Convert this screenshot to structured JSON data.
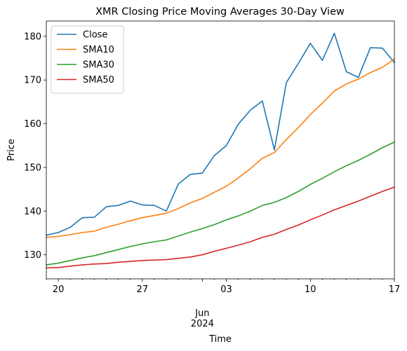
{
  "chart_data": {
    "type": "line",
    "title": "XMR Closing Price Moving Averages 30-Day View",
    "xlabel": "Time",
    "ylabel": "Price",
    "x": [
      "2024-05-19",
      "2024-05-20",
      "2024-05-21",
      "2024-05-22",
      "2024-05-23",
      "2024-05-24",
      "2024-05-25",
      "2024-05-26",
      "2024-05-27",
      "2024-05-28",
      "2024-05-29",
      "2024-05-30",
      "2024-05-31",
      "2024-06-01",
      "2024-06-02",
      "2024-06-03",
      "2024-06-04",
      "2024-06-05",
      "2024-06-06",
      "2024-06-07",
      "2024-06-08",
      "2024-06-09",
      "2024-06-10",
      "2024-06-11",
      "2024-06-12",
      "2024-06-13",
      "2024-06-14",
      "2024-06-15",
      "2024-06-16",
      "2024-06-17"
    ],
    "xlim": [
      "2024-05-19",
      "2024-06-17"
    ],
    "ylim": [
      124.5,
      183.5
    ],
    "x_ticks": [
      {
        "date": "2024-05-20",
        "label": "20"
      },
      {
        "date": "2024-05-27",
        "label": "27"
      },
      {
        "date": "2024-06-03",
        "label": "03"
      },
      {
        "date": "2024-06-10",
        "label": "10"
      },
      {
        "date": "2024-06-17",
        "label": "17"
      }
    ],
    "x_secondary_label": {
      "month": "Jun",
      "year": "2024"
    },
    "y_ticks": [
      130,
      140,
      150,
      160,
      170,
      180
    ],
    "y_tick_labels": [
      "130",
      "140",
      "150",
      "160",
      "170",
      "180"
    ],
    "legend_position": "top-left",
    "grid": false,
    "series": [
      {
        "name": "Close",
        "color": "#1f77b4",
        "values": [
          134.5,
          135.1,
          136.3,
          138.5,
          138.6,
          141.0,
          141.3,
          142.3,
          141.4,
          141.3,
          140.0,
          146.2,
          148.4,
          148.7,
          152.7,
          155.0,
          159.9,
          163.1,
          165.2,
          154.0,
          169.4,
          173.8,
          178.4,
          174.5,
          180.7,
          171.9,
          170.6,
          177.4,
          177.3,
          174.0
        ]
      },
      {
        "name": "SMA10",
        "color": "#ff7f0e",
        "values": [
          134.0,
          134.2,
          134.6,
          135.1,
          135.4,
          136.3,
          137.0,
          137.8,
          138.5,
          139.0,
          139.5,
          140.6,
          141.9,
          142.9,
          144.3,
          145.7,
          147.6,
          149.7,
          152.1,
          153.4,
          156.4,
          159.1,
          162.1,
          164.7,
          167.5,
          169.1,
          170.2,
          171.7,
          172.9,
          174.8
        ]
      },
      {
        "name": "SMA30",
        "color": "#2ca02c",
        "values": [
          127.7,
          128.1,
          128.7,
          129.3,
          129.8,
          130.5,
          131.2,
          131.9,
          132.5,
          133.0,
          133.4,
          134.3,
          135.2,
          136.0,
          136.9,
          138.0,
          138.9,
          140.0,
          141.3,
          142.0,
          143.1,
          144.5,
          146.1,
          147.5,
          149.0,
          150.4,
          151.6,
          153.0,
          154.5,
          155.8
        ]
      },
      {
        "name": "SMA50",
        "color": "#d62728",
        "values": [
          127.0,
          127.1,
          127.4,
          127.7,
          127.9,
          128.0,
          128.3,
          128.5,
          128.7,
          128.8,
          128.9,
          129.2,
          129.5,
          130.0,
          130.8,
          131.5,
          132.2,
          133.0,
          134.0,
          134.7,
          135.8,
          136.8,
          138.0,
          139.1,
          140.3,
          141.3,
          142.3,
          143.4,
          144.5,
          145.5
        ]
      }
    ]
  }
}
